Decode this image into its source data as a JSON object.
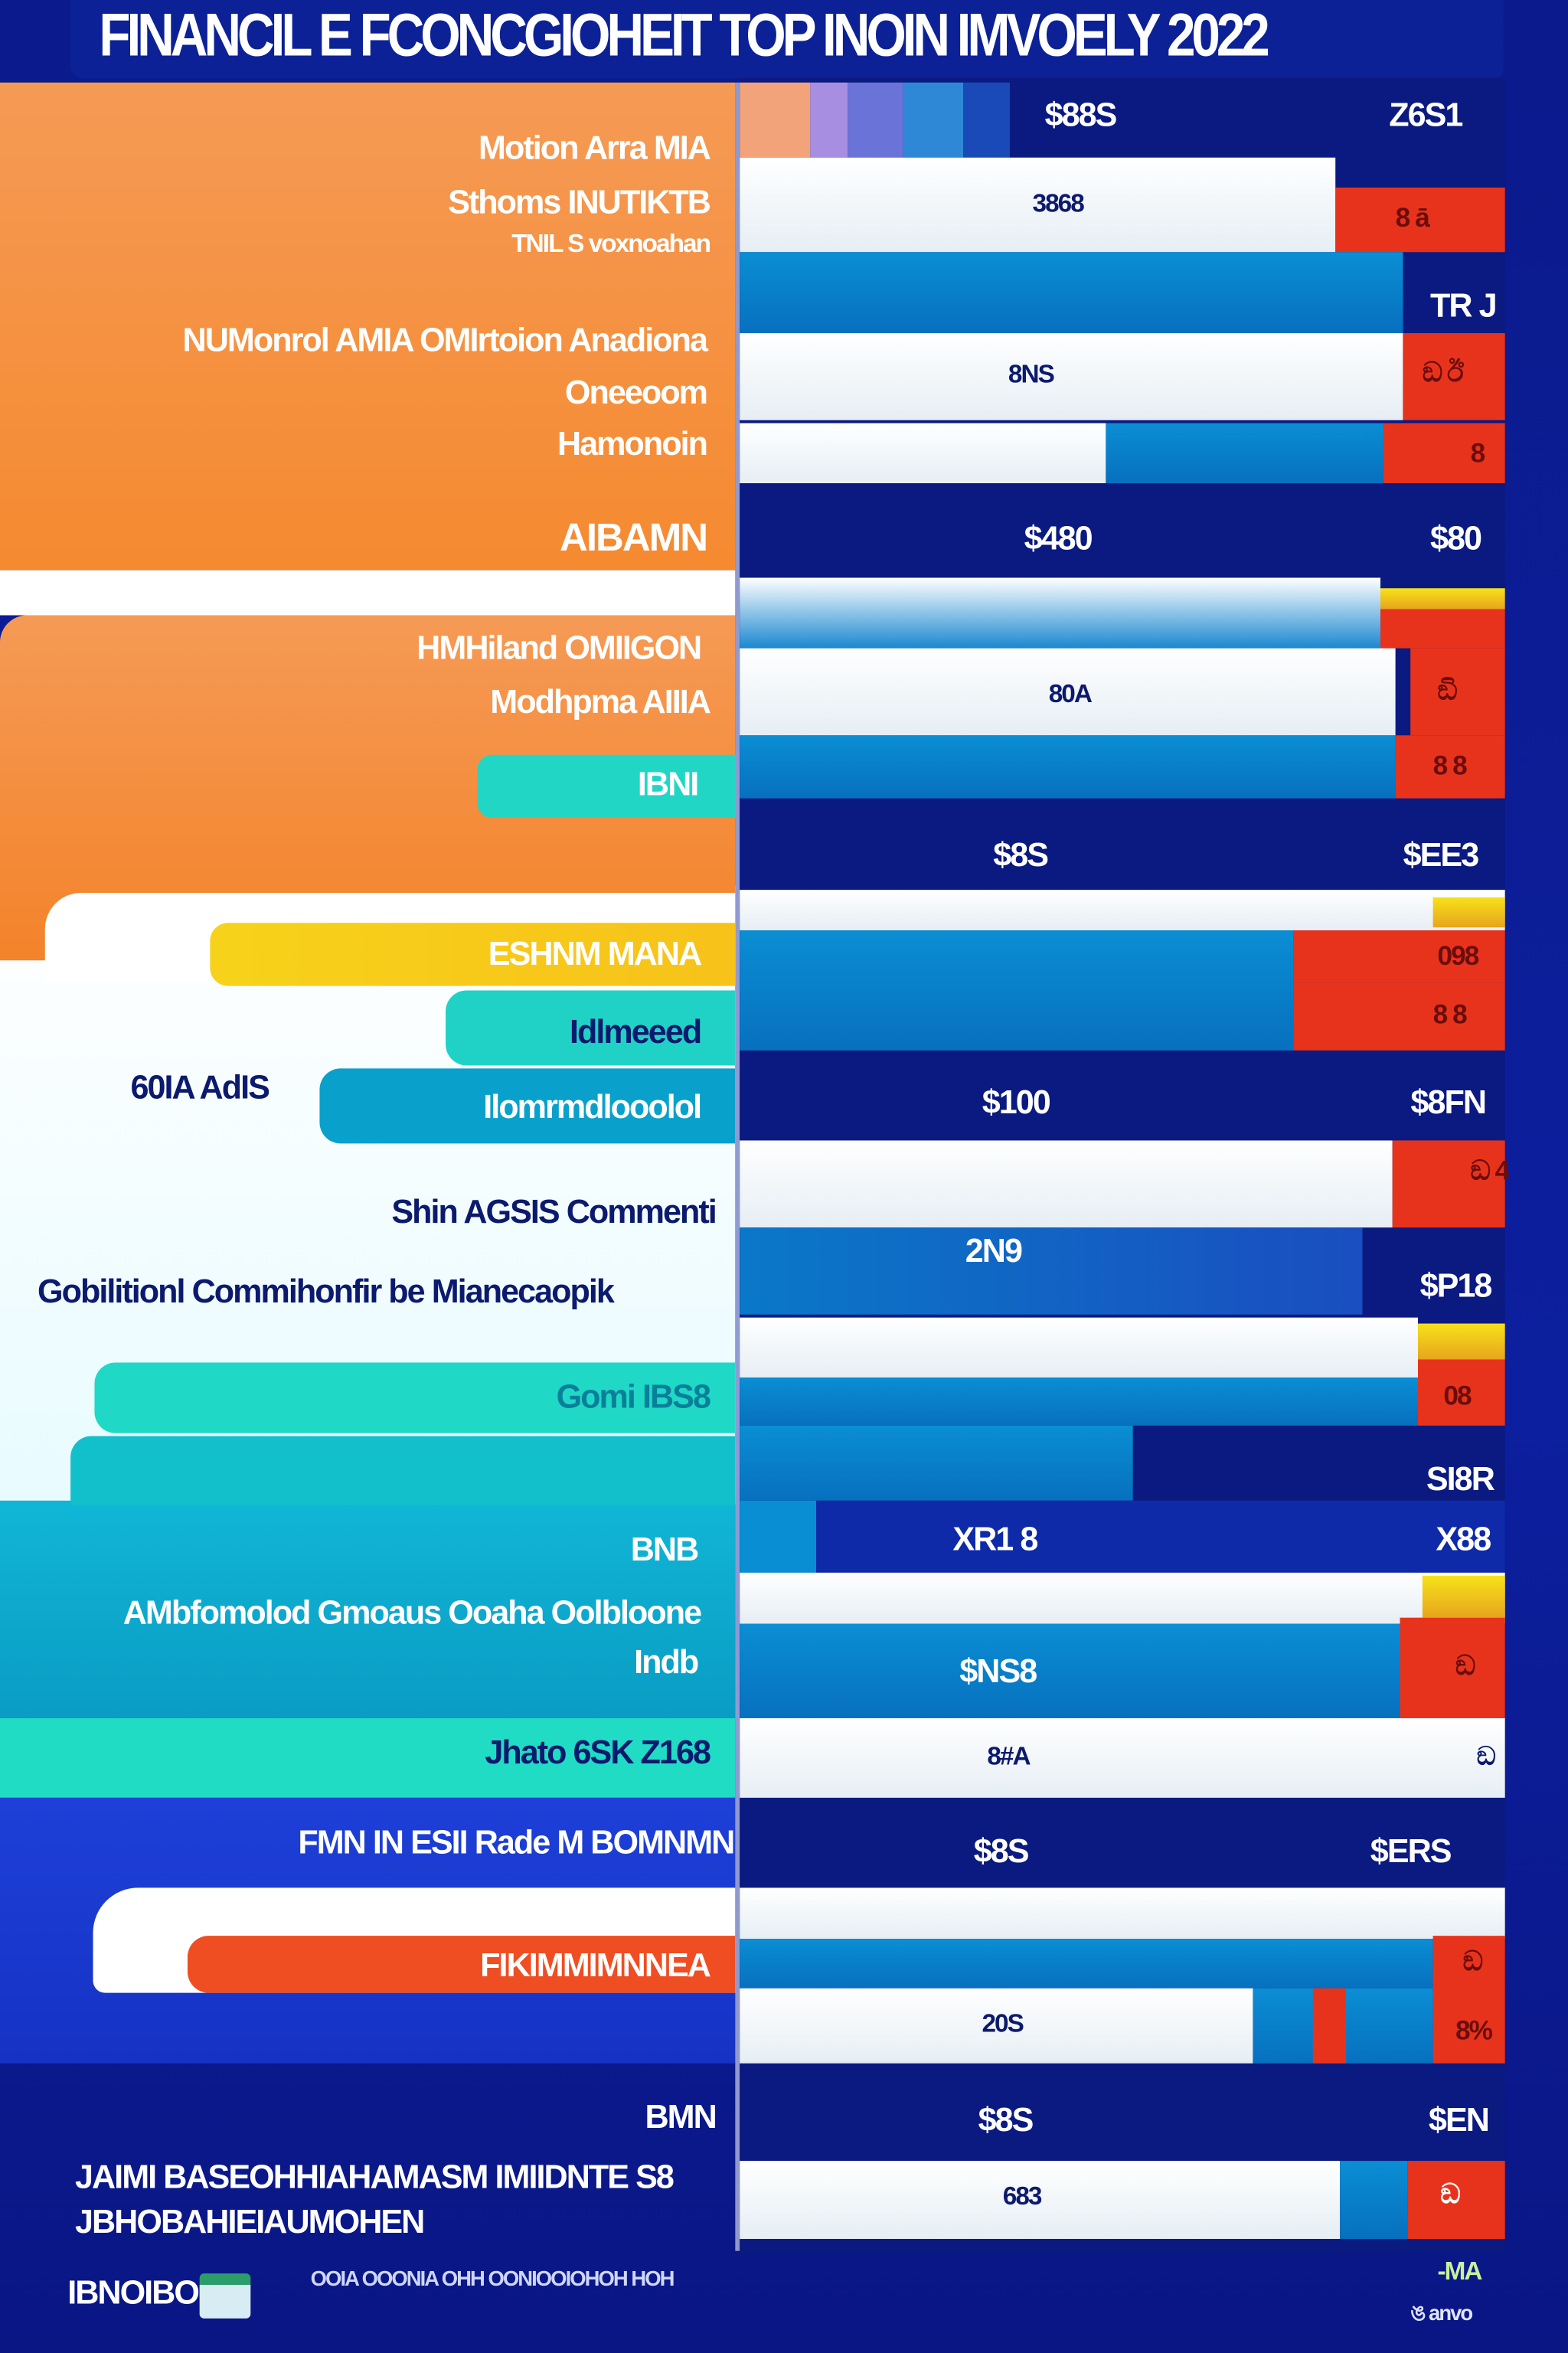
{
  "title": "FINANCIL E FCONCGIOHEIT TOP INOIN IMVOELY 2022",
  "colors": {
    "orange": "#f28a3a",
    "navy": "#0b1a80",
    "blue": "#0a8ed3",
    "red": "#e8331c",
    "yellow": "#f6e21a",
    "teal": "#0aa8c8",
    "cyan": "#1ed8c8"
  },
  "left": {
    "s1": [
      "Motion Arra MIA",
      "Sthoms INUTIKTB",
      "TNIL S voxnoahan"
    ],
    "s2": [
      "NUMonrol AMIA OMIrtoion Anadiona",
      "Oneeoom",
      "Hamonoin"
    ],
    "s3": "AIBAMN",
    "s4": [
      "HMHiland OMIIGON",
      "Modhpma AIIIA"
    ],
    "pill_ibni": "IBNI",
    "pill_yellow": "ESHNM MANA",
    "pill_teal": "Idlmeeed",
    "pill_blue": "Ilomrmdlooolol",
    "side_label": "60IA AdIS",
    "s5": "Shin AGSIS Commenti",
    "s6": "Gobilitionl Commihonfir be Mianecaopik",
    "pill_gomi": "Gomi IBS8",
    "s7": [
      "BNB",
      "AMbfomolod Gmoaus Ooaha Oolbloone",
      "Indb"
    ],
    "s8": "Jhato 6SK Z168",
    "s9": "FMN IN ESII Rade M BOMNMN",
    "pill_red": "FIKIMMIMNNEA",
    "s10": [
      "BMN",
      "JAIMI BASEOHHIAHAMASM IMIIDNTE S8",
      "JBHOBAHIEIAUMOHEN"
    ],
    "logo": "IBNOIBO",
    "footer": "OOIA OOONIA OHH OONIOOIOHOH HOH"
  },
  "right": {
    "r1": [
      "$88S",
      "Z6S1"
    ],
    "r2": [
      "3868",
      "8 ā"
    ],
    "r3": "TR J",
    "r4": [
      "8NS",
      "ඞ ඊ"
    ],
    "r5": "8",
    "r6": [
      "$480",
      "$80"
    ],
    "r8": [
      "80A",
      "ඞි"
    ],
    "r9": "8 8",
    "r10": [
      "$8S",
      "$EE3"
    ],
    "r12": "098",
    "r13": "8 8",
    "r14": [
      "$100",
      "$8FN"
    ],
    "r15": "ඞ 4",
    "r16": [
      "2N9",
      "$P18"
    ],
    "r18": "08",
    "r19": "SI8R",
    "r20": [
      "XR1 8",
      "X88"
    ],
    "r22": [
      "$NS8",
      "ඞ"
    ],
    "r23": [
      "8#A",
      "ඞ"
    ],
    "r24": [
      "$8S",
      "$ERS"
    ],
    "r26": "ඞ",
    "r27": [
      "20S",
      "8%"
    ],
    "r28": [
      "$8S",
      "$EN"
    ],
    "r29": [
      "683",
      "ඞ"
    ],
    "foot": [
      "-MA",
      "ঙ anvo"
    ]
  }
}
